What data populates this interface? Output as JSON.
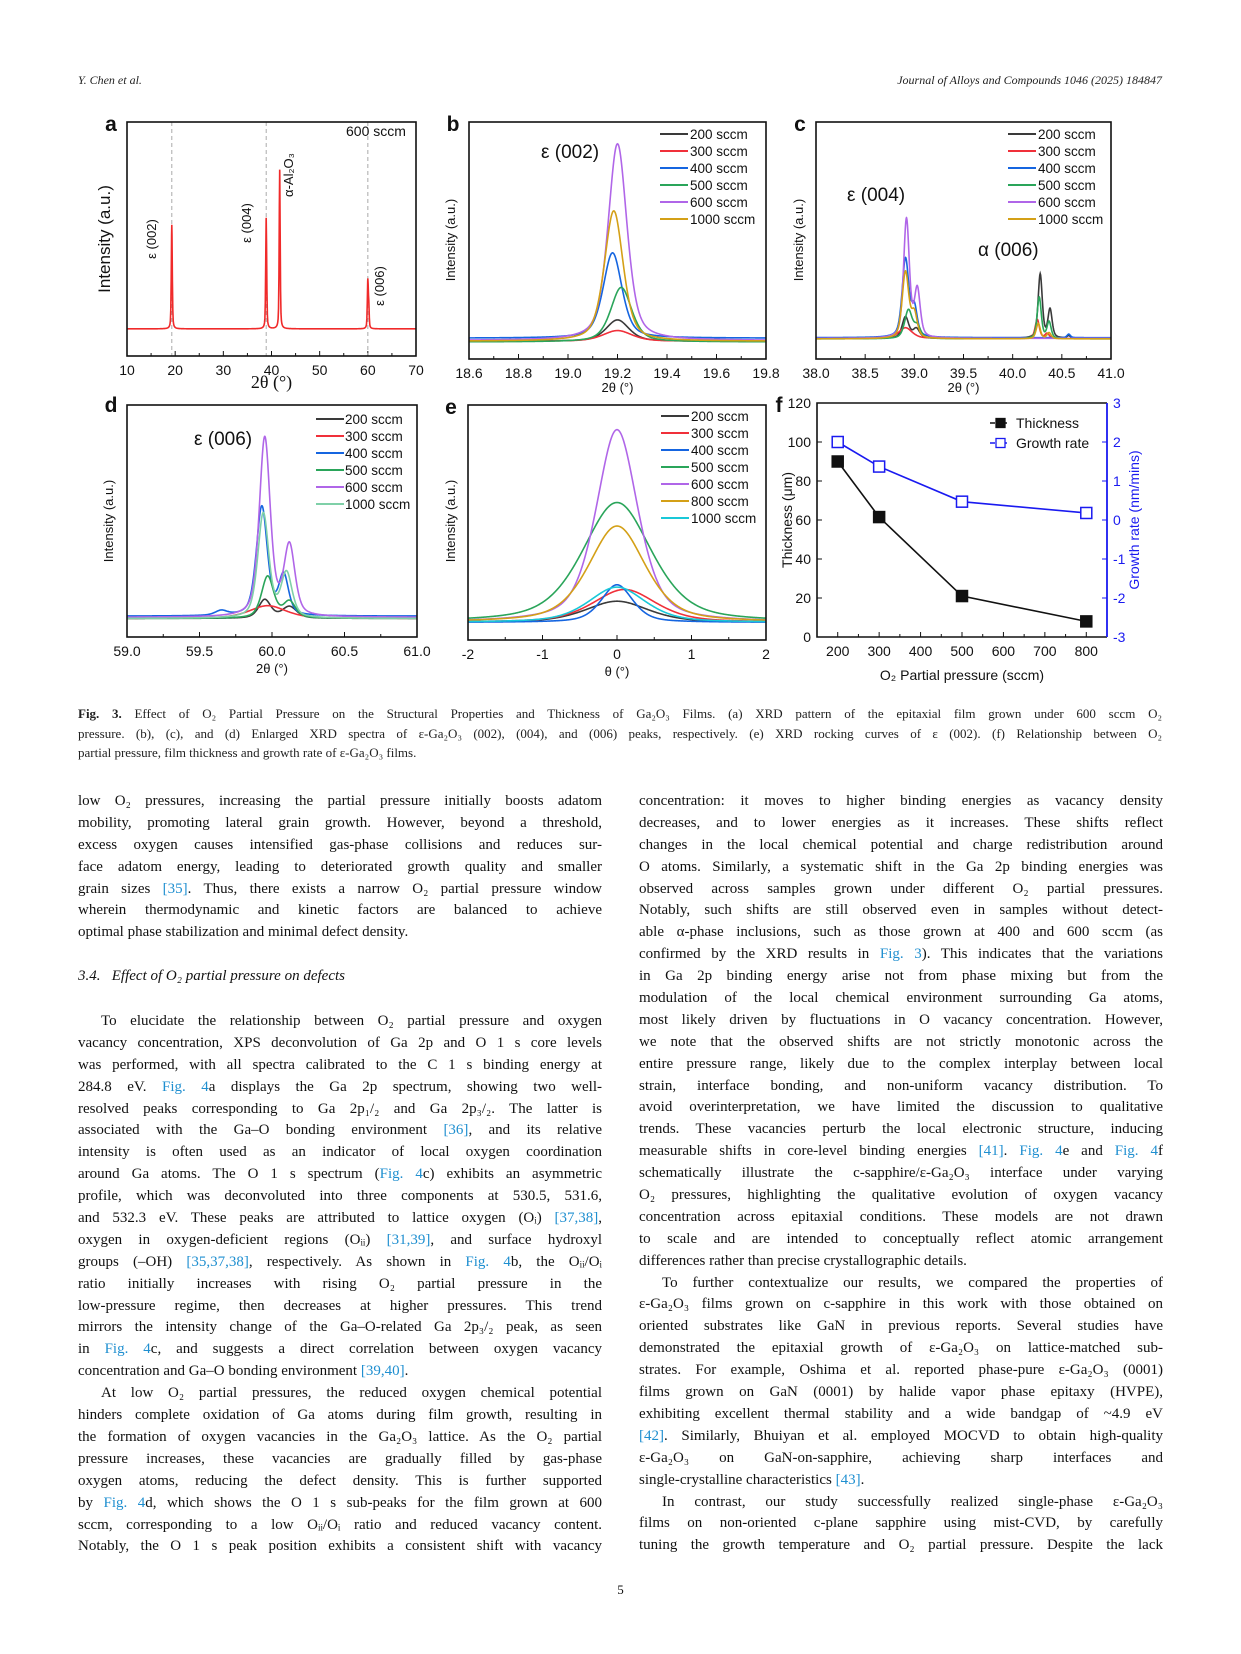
{
  "header": {
    "authors": "Y. Chen et al.",
    "journal": "Journal of Alloys and Compounds 1046 (2025) 184847"
  },
  "figure": {
    "panel_letters": [
      "a",
      "b",
      "c",
      "d",
      "e",
      "f"
    ]
  },
  "chart_data": [
    {
      "id": "a",
      "type": "line",
      "xlabel": "2θ (°)",
      "ylabel": "Intensity (a.u.)",
      "xlim": [
        10,
        70
      ],
      "ylim": [
        0,
        1
      ],
      "xticks": [
        "10",
        "20",
        "30",
        "40",
        "50",
        "60",
        "70"
      ],
      "reference_lines_x": [
        19.3,
        38.9,
        60.0
      ],
      "annotations": [
        "600 sccm",
        "ε (002)",
        "ε (004)",
        "α-Al₂O₃",
        "ε (006)"
      ],
      "series": [
        {
          "name": "600 sccm",
          "color": "#f02a2a",
          "baseline": 0.116,
          "peaks": [
            [
              19.3,
              0.445,
              0.12
            ],
            [
              38.9,
              0.474,
              0.12
            ],
            [
              41.7,
              0.68,
              0.12
            ],
            [
              60.0,
              0.205,
              0.12
            ],
            [
              60.2,
              0.08,
              0.1
            ]
          ]
        }
      ]
    },
    {
      "id": "b",
      "type": "line",
      "xlabel": "2θ (°)",
      "ylabel": "Intensity (a.u.)",
      "xlim": [
        18.6,
        19.8
      ],
      "ylim": [
        0,
        1
      ],
      "xticks": [
        "18.6",
        "18.8",
        "19.0",
        "19.2",
        "19.4",
        "19.6",
        "19.8"
      ],
      "annotations": [
        "ε (002)"
      ],
      "series": [
        {
          "name": "200 sccm",
          "color": "#3a3a3a",
          "baseline": 0.075,
          "peaks": [
            [
              19.2,
              0.09,
              0.055
            ]
          ]
        },
        {
          "name": "300 sccm",
          "color": "#f0303a",
          "baseline": 0.075,
          "peaks": [
            [
              19.2,
              0.045,
              0.07
            ]
          ]
        },
        {
          "name": "400 sccm",
          "color": "#1565e0",
          "baseline": 0.088,
          "peaks": [
            [
              19.18,
              0.36,
              0.045
            ]
          ]
        },
        {
          "name": "500 sccm",
          "color": "#2aa55a",
          "baseline": 0.072,
          "peaks": [
            [
              19.215,
              0.23,
              0.05
            ]
          ]
        },
        {
          "name": "600 sccm",
          "color": "#b066e8",
          "baseline": 0.078,
          "peaks": [
            [
              19.2,
              0.83,
              0.045
            ]
          ]
        },
        {
          "name": "1000 sccm",
          "color": "#d4a017",
          "baseline": 0.075,
          "peaks": [
            [
              19.185,
              0.55,
              0.045
            ]
          ]
        }
      ]
    },
    {
      "id": "c",
      "type": "line",
      "xlabel": "2θ (°)",
      "ylabel": "Intensity (a.u.)",
      "xlim": [
        38.0,
        41.0
      ],
      "ylim": [
        0,
        1
      ],
      "xticks": [
        "38.0",
        "38.5",
        "39.0",
        "39.5",
        "40.0",
        "40.5",
        "41.0"
      ],
      "annotations": [
        "ε (004)",
        "α (006)"
      ],
      "series": [
        {
          "name": "200 sccm",
          "color": "#3a3a3a",
          "baseline": 0.087,
          "peaks": [
            [
              38.91,
              0.09,
              0.04
            ],
            [
              39.02,
              0.04,
              0.04
            ],
            [
              40.28,
              0.27,
              0.025
            ],
            [
              40.38,
              0.12,
              0.025
            ],
            [
              40.57,
              0.01,
              0.02
            ]
          ]
        },
        {
          "name": "300 sccm",
          "color": "#f0303a",
          "baseline": 0.087,
          "peaks": [
            [
              38.91,
              0.045,
              0.08
            ],
            [
              40.25,
              0.08,
              0.025
            ],
            [
              40.35,
              0.02,
              0.025
            ]
          ]
        },
        {
          "name": "400 sccm",
          "color": "#1565e0",
          "baseline": 0.09,
          "peaks": [
            [
              38.91,
              0.33,
              0.04
            ],
            [
              39.0,
              0.12,
              0.035
            ],
            [
              40.57,
              0.015,
              0.02
            ]
          ]
        },
        {
          "name": "500 sccm",
          "color": "#2aa55a",
          "baseline": 0.085,
          "peaks": [
            [
              38.94,
              0.12,
              0.045
            ],
            [
              39.03,
              0.05,
              0.04
            ],
            [
              40.27,
              0.175,
              0.025
            ],
            [
              40.37,
              0.07,
              0.025
            ]
          ]
        },
        {
          "name": "600 sccm",
          "color": "#b066e8",
          "baseline": 0.087,
          "peaks": [
            [
              38.92,
              0.5,
              0.035
            ],
            [
              39.03,
              0.2,
              0.035
            ]
          ]
        },
        {
          "name": "1000 sccm",
          "color": "#d4a017",
          "baseline": 0.085,
          "peaks": [
            [
              38.91,
              0.28,
              0.04
            ],
            [
              39.0,
              0.1,
              0.035
            ],
            [
              40.26,
              0.065,
              0.025
            ],
            [
              40.37,
              0.025,
              0.025
            ]
          ]
        }
      ]
    },
    {
      "id": "d",
      "type": "line",
      "xlabel": "2θ (°)",
      "ylabel": "Intensity (a.u.)",
      "xlim": [
        59.0,
        61.0
      ],
      "ylim": [
        0,
        1
      ],
      "xticks": [
        "59.0",
        "59.5",
        "60.0",
        "60.5",
        "61.0"
      ],
      "annotations": [
        "ε (006)"
      ],
      "series": [
        {
          "name": "200 sccm",
          "color": "#3a3a3a",
          "baseline": 0.08,
          "peaks": [
            [
              59.95,
              0.08,
              0.05
            ],
            [
              60.12,
              0.05,
              0.06
            ]
          ]
        },
        {
          "name": "300 sccm",
          "color": "#f0303a",
          "baseline": 0.08,
          "peaks": [
            [
              59.97,
              0.055,
              0.15
            ]
          ]
        },
        {
          "name": "400 sccm",
          "color": "#1565e0",
          "baseline": 0.09,
          "peaks": [
            [
              59.65,
              0.02,
              0.05
            ],
            [
              59.93,
              0.47,
              0.045
            ],
            [
              60.08,
              0.17,
              0.04
            ]
          ]
        },
        {
          "name": "500 sccm",
          "color": "#2aa55a",
          "baseline": 0.08,
          "peaks": [
            [
              59.97,
              0.18,
              0.05
            ],
            [
              60.12,
              0.07,
              0.05
            ]
          ]
        },
        {
          "name": "600 sccm",
          "color": "#b066e8",
          "baseline": 0.085,
          "peaks": [
            [
              59.95,
              0.77,
              0.045
            ],
            [
              60.12,
              0.3,
              0.045
            ]
          ]
        },
        {
          "name": "1000 sccm",
          "color": "#7fd0a8",
          "baseline": 0.08,
          "peaks": [
            [
              59.94,
              0.45,
              0.045
            ],
            [
              60.1,
              0.19,
              0.045
            ]
          ]
        }
      ]
    },
    {
      "id": "e",
      "type": "line",
      "xlabel": "θ (°)",
      "ylabel": "Intensity (a.u.)",
      "xlim": [
        -2,
        2
      ],
      "ylim": [
        0,
        1
      ],
      "xticks": [
        "-2",
        "-1",
        "0",
        "1",
        "2"
      ],
      "annotations": [],
      "series": [
        {
          "name": "200 sccm",
          "color": "#3a3a3a",
          "baseline": 0.075,
          "peaks": [
            [
              0,
              0.09,
              0.5
            ]
          ]
        },
        {
          "name": "300 sccm",
          "color": "#f0303a",
          "baseline": 0.075,
          "peaks": [
            [
              0.1,
              0.14,
              0.5
            ]
          ]
        },
        {
          "name": "400 sccm",
          "color": "#1565e0",
          "baseline": 0.075,
          "peaks": [
            [
              0,
              0.16,
              0.25
            ]
          ]
        },
        {
          "name": "500 sccm",
          "color": "#2aa55a",
          "baseline": 0.075,
          "peaks": [
            [
              0,
              0.51,
              0.55
            ]
          ]
        },
        {
          "name": "600 sccm",
          "color": "#b066e8",
          "baseline": 0.075,
          "peaks": [
            [
              0,
              0.82,
              0.33
            ]
          ]
        },
        {
          "name": "800 sccm",
          "color": "#d4a017",
          "baseline": 0.075,
          "peaks": [
            [
              0,
              0.41,
              0.45
            ]
          ]
        },
        {
          "name": "1000 sccm",
          "color": "#19c8d8",
          "baseline": 0.075,
          "peaks": [
            [
              0,
              0.15,
              0.45
            ]
          ]
        }
      ]
    },
    {
      "id": "f",
      "type": "line",
      "xlabel": "O₂ Partial pressure (sccm)",
      "ylabel": "Thickness (μm)",
      "ylabel_right": "Growth rate (nm/mins)",
      "xlim": [
        150,
        850
      ],
      "ylim": [
        0,
        120
      ],
      "ylim_right": [
        -3,
        3
      ],
      "xticks": [
        "200",
        "300",
        "400",
        "500",
        "600",
        "700",
        "800"
      ],
      "yticks": [
        "0",
        "20",
        "40",
        "60",
        "80",
        "100",
        "120"
      ],
      "yticks_right": [
        "-3",
        "-2",
        "-1",
        "0",
        "1",
        "2",
        "3"
      ],
      "legend": "top-right",
      "right_axis_color": "#1a1af0",
      "series": [
        {
          "name": "Thickness",
          "axis": "left",
          "color": "#111111",
          "marker": "filled-square",
          "x": [
            200,
            300,
            500,
            800
          ],
          "y": [
            90,
            61.5,
            21,
            8
          ]
        },
        {
          "name": "Growth rate",
          "axis": "right",
          "color": "#1a1af0",
          "marker": "open-square",
          "x": [
            200,
            300,
            500,
            800
          ],
          "y": [
            2.0,
            1.37,
            0.47,
            0.18
          ]
        }
      ]
    }
  ],
  "caption": {
    "label": "Fig. 3.",
    "lines": [
      " Effect of O₂ Partial Pressure on the Structural Properties and Thickness of Ga₂O₃ Films. (a) XRD pattern of the epitaxial film grown under 600 sccm O₂",
      "pressure. (b), (c), and (d) Enlarged XRD spectra of ε-Ga₂O₃ (002), (004), and (006) peaks, respectively. (e) XRD rocking curves of ε (002). (f) Relationship between O₂",
      "partial pressure, film thickness and growth rate of ε-Ga₂O₃ films."
    ]
  },
  "left_column": [
    {
      "type": "paragraph",
      "starts_paragraph": false,
      "ends_paragraph": true,
      "lines": [
        "low O₂ pressures, increasing the partial pressure initially boosts adatom",
        "mobility, promoting lateral grain growth. However, beyond a threshold,",
        "excess oxygen causes intensified gas-phase collisions and reduces sur-",
        "face adatom energy, leading to deteriorated growth quality and smaller",
        "grain sizes [35]. Thus, there exists a narrow O₂ partial pressure window",
        "wherein thermodynamic and kinetic factors are balanced to achieve",
        "optimal phase stabilization and minimal defect density."
      ]
    },
    {
      "type": "heading",
      "text": "3.4.   Effect of O₂ partial pressure on defects"
    },
    {
      "type": "paragraph",
      "starts_paragraph": true,
      "ends_paragraph": true,
      "lines": [
        "To elucidate the relationship between O₂ partial pressure and oxygen",
        "vacancy concentration, XPS deconvolution of Ga 2p and O 1 s core levels",
        "was performed, with all spectra calibrated to the C 1 s binding energy at",
        "284.8 eV. Fig. 4a displays the Ga 2p spectrum, showing two well-",
        "resolved peaks corresponding to Ga 2p₁/₂ and Ga 2p₃/₂. The latter is",
        "associated with the Ga–O bonding environment [36], and its relative",
        "intensity is often used as an indicator of local oxygen coordination",
        "around Ga atoms. The O 1 s spectrum (Fig. 4c) exhibits an asymmetric",
        "profile, which was deconvoluted into three components at 530.5, 531.6,",
        "and 532.3 eV. These peaks are attributed to lattice oxygen (Oᵢ) [37,38],",
        "oxygen in oxygen-deficient regions (Oᵢᵢ) [31,39], and surface hydroxyl",
        "groups (–OH) [35,37,38], respectively. As shown in Fig. 4b, the Oᵢᵢ/Oᵢ",
        "ratio initially increases with rising O₂ partial pressure in the",
        "low-pressure regime, then decreases at higher pressures. This trend",
        "mirrors the intensity change of the Ga–O-related Ga 2p₃/₂ peak, as seen",
        "in Fig. 4c, and suggests a direct correlation between oxygen vacancy",
        "concentration and Ga–O bonding environment [39,40]."
      ]
    },
    {
      "type": "paragraph",
      "starts_paragraph": true,
      "ends_paragraph": false,
      "lines": [
        "At low O₂ partial pressures, the reduced oxygen chemical potential",
        "hinders complete oxidation of Ga atoms during film growth, resulting in",
        "the formation of oxygen vacancies in the Ga₂O₃ lattice. As the O₂ partial",
        "pressure increases, these vacancies are gradually filled by gas-phase",
        "oxygen atoms, reducing the defect density. This is further supported",
        "by Fig. 4d, which shows the O 1 s sub-peaks for the film grown at 600",
        "sccm, corresponding to a low Oᵢᵢ/Oᵢ ratio and reduced vacancy content.",
        "Notably, the O 1 s peak position exhibits a consistent shift with vacancy"
      ]
    }
  ],
  "right_column": [
    {
      "type": "paragraph",
      "starts_paragraph": false,
      "ends_paragraph": true,
      "lines": [
        "concentration: it moves to higher binding energies as vacancy density",
        "decreases, and to lower energies as it increases. These shifts reflect",
        "changes in the local chemical potential and charge redistribution around",
        "O atoms. Similarly, a systematic shift in the Ga 2p binding energies was",
        "observed across samples grown under different O₂ partial pressures.",
        "Notably, such shifts are still observed even in samples without detect-",
        "able α-phase inclusions, such as those grown at 400 and 600 sccm (as",
        "confirmed by the XRD results in Fig. 3). This indicates that the variations",
        "in Ga 2p binding energy arise not from phase mixing but from the",
        "modulation of the local chemical environment surrounding Ga atoms,",
        "most likely driven by fluctuations in O vacancy concentration. However,",
        "we note that the observed shifts are not strictly monotonic across the",
        "entire pressure range, likely due to the complex interplay between local",
        "strain, interface bonding, and non-uniform vacancy distribution. To",
        "avoid overinterpretation, we have limited the discussion to qualitative",
        "trends. These vacancies perturb the local electronic structure, inducing",
        "measurable shifts in core-level binding energies [41]. Fig. 4e and Fig. 4f",
        "schematically illustrate the c-sapphire/ε-Ga₂O₃ interface under varying",
        "O₂ pressures, highlighting the qualitative evolution of oxygen vacancy",
        "concentration across epitaxial conditions. These models are not drawn",
        "to scale and are intended to conceptually reflect atomic arrangement",
        "differences rather than precise crystallographic details."
      ]
    },
    {
      "type": "paragraph",
      "starts_paragraph": true,
      "ends_paragraph": true,
      "lines": [
        "To further contextualize our results, we compared the properties of",
        "ε-Ga₂O₃ films grown on c-sapphire in this work with those obtained on",
        "oriented substrates like GaN in previous reports. Several studies have",
        "demonstrated the epitaxial growth of ε-Ga₂O₃ on lattice-matched sub-",
        "strates. For example, Oshima et al. reported phase-pure ε-Ga₂O₃ (0001)",
        "films grown on GaN (0001) by halide vapor phase epitaxy (HVPE),",
        "exhibiting excellent thermal stability and a wide bandgap of ~4.9 eV",
        "[42]. Similarly, Bhuiyan et al. employed MOCVD to obtain high-quality",
        "ε-Ga₂O₃ on GaN-on-sapphire, achieving sharp interfaces and",
        "single-crystalline characteristics [43]."
      ]
    },
    {
      "type": "paragraph",
      "starts_paragraph": true,
      "ends_paragraph": false,
      "lines": [
        "In contrast, our study successfully realized single-phase ε-Ga₂O₃",
        "films on non-oriented c-plane sapphire using mist-CVD, by carefully",
        "tuning the growth temperature and O₂ partial pressure. Despite the lack"
      ]
    }
  ],
  "page_number": "5"
}
